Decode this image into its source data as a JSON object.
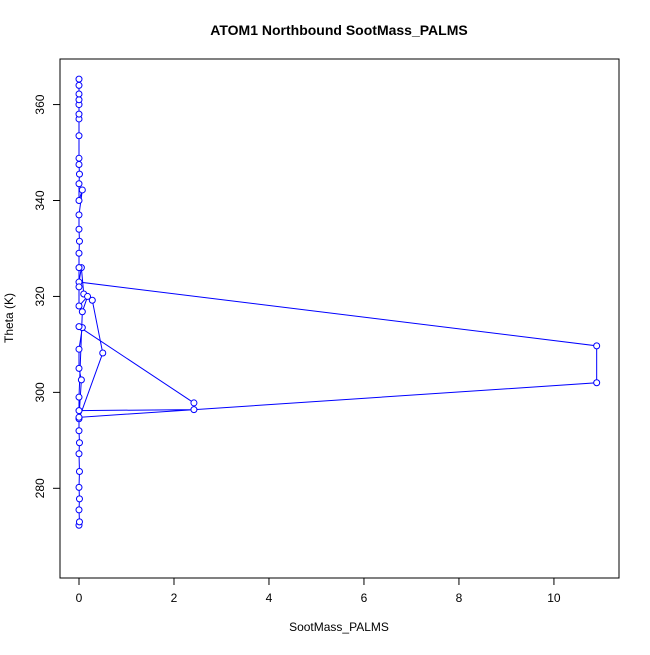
{
  "chart_data": {
    "type": "line",
    "title": "ATOM1 Northbound SootMass_PALMS",
    "x_label": "SootMass_PALMS",
    "y_label": "Theta (K)",
    "color": "#0000ff",
    "x": [
      0,
      0.01,
      0,
      0.01,
      0,
      0.01,
      0,
      0.01,
      0,
      0,
      0.5,
      0.28,
      0.1,
      0.05,
      0,
      10.9,
      10.9,
      0,
      0.05,
      0,
      0,
      0.07,
      0,
      2.42,
      2.42,
      0,
      0,
      0.07,
      0.18,
      0,
      0,
      0,
      0,
      0.01,
      0,
      0,
      0.07,
      0,
      0,
      0.01,
      0,
      0,
      0,
      0,
      0,
      0,
      0,
      0,
      0,
      0
    ],
    "values": [
      272.3,
      273,
      275.5,
      277.8,
      280.2,
      283.5,
      287.2,
      289.5,
      292,
      294.5,
      308.2,
      319.2,
      320.5,
      326,
      323,
      309.7,
      302,
      294.8,
      302.6,
      305,
      309,
      313.5,
      313.7,
      297.8,
      296.4,
      296.2,
      299,
      316.8,
      320,
      318,
      322,
      326,
      329,
      331.5,
      334,
      337,
      342.2,
      340,
      343.5,
      345.5,
      347.5,
      348.8,
      353.5,
      357,
      358,
      360,
      361,
      362.2,
      364,
      365.3
    ],
    "xlim": [
      -0.4,
      11.37
    ],
    "ylim": [
      261.3,
      369.5
    ],
    "xticks": [
      0,
      2,
      4,
      6,
      8,
      10
    ],
    "yticks": [
      280,
      300,
      320,
      340,
      360
    ]
  }
}
